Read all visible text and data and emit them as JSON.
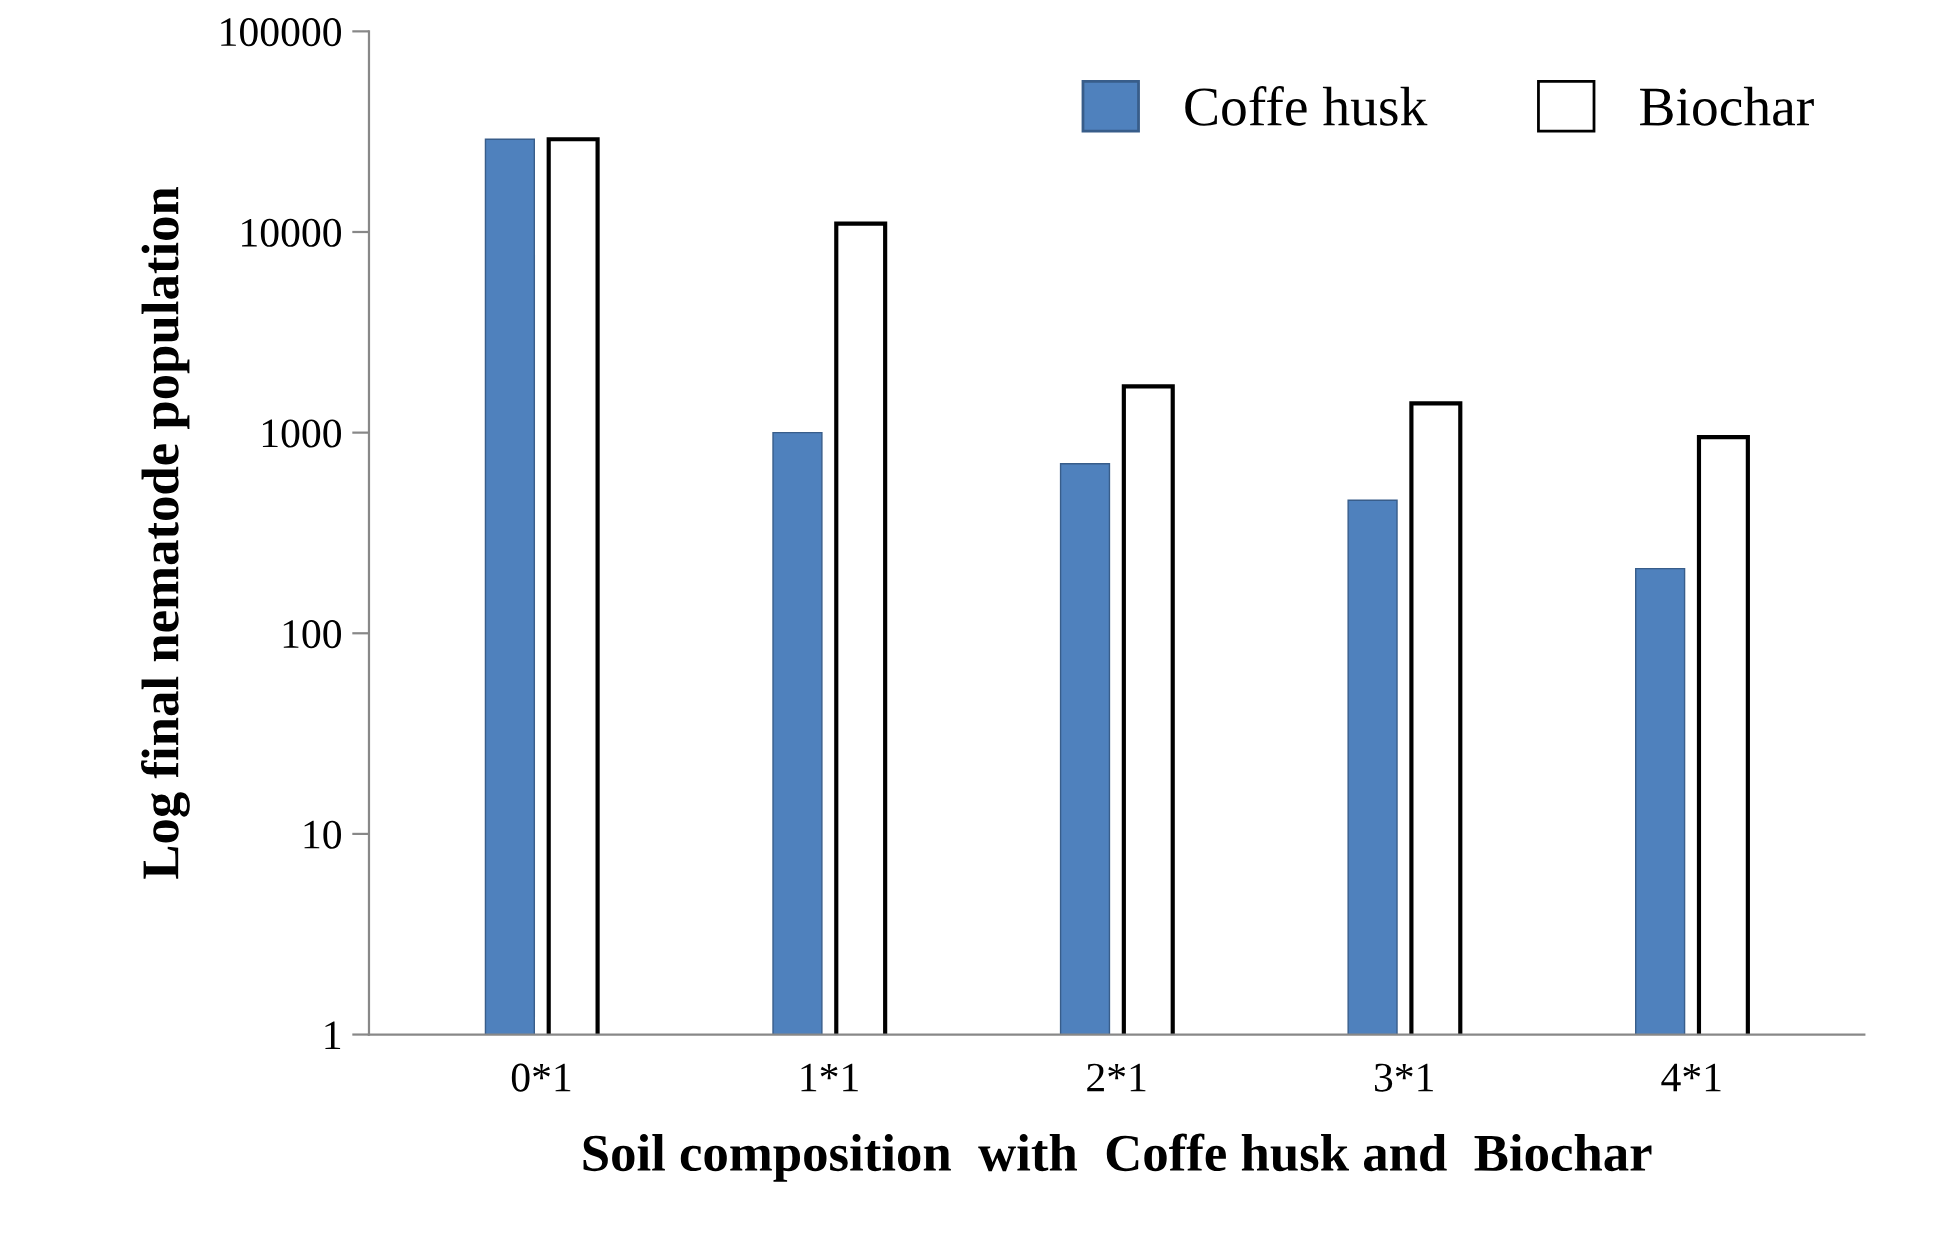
{
  "chart_data": {
    "type": "bar",
    "xlabel": "Soil composition  with  Coffe husk and  Biochar",
    "ylabel": "Log final nematode population",
    "categories": [
      "0*1",
      "1*1",
      "2*1",
      "3*1",
      "4*1"
    ],
    "series": [
      {
        "name": "Coffe husk",
        "color": "#4f81bd",
        "values": [
          29000,
          1000,
          700,
          460,
          210
        ]
      },
      {
        "name": "Biochar",
        "color": "#ffffff",
        "values": [
          29000,
          11000,
          1700,
          1400,
          950
        ]
      }
    ],
    "log": "y",
    "ylim": [
      1,
      100000
    ],
    "yticks": [
      1,
      10,
      100,
      1000,
      10000,
      100000
    ],
    "grid": false,
    "legend": "top right"
  }
}
